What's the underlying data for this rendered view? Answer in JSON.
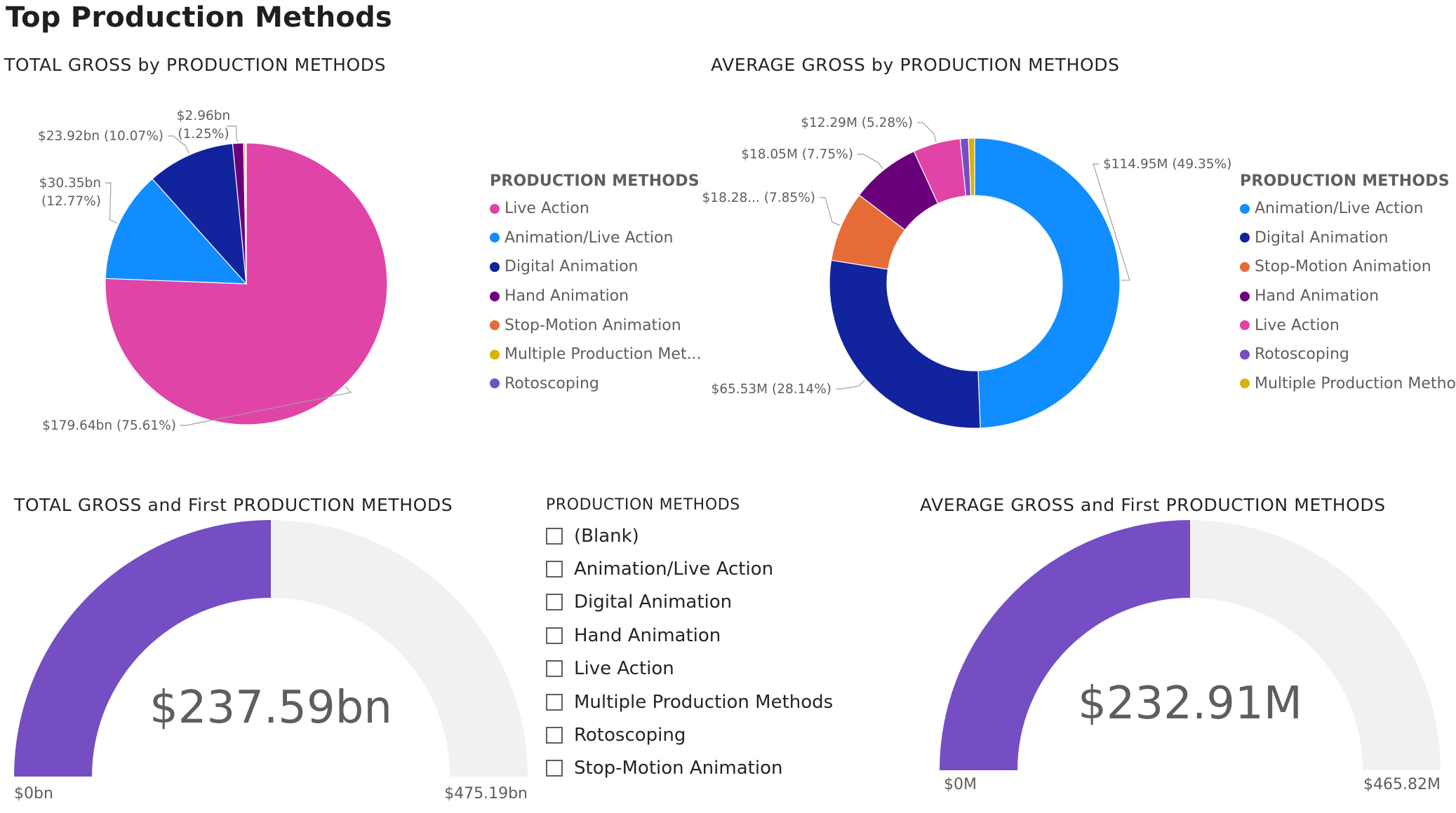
{
  "page": {
    "title": "Top Production Methods"
  },
  "chart_data": [
    {
      "type": "pie",
      "title": "TOTAL GROSS by PRODUCTION METHODS",
      "legend_title": "PRODUCTION METHODS",
      "legend_position": "right",
      "slices": [
        {
          "label": "Live Action",
          "legend_label": "Live Action",
          "value": 179.64,
          "percent": 75.61,
          "display": "$179.64bn (75.61%)",
          "color": "#E044A7"
        },
        {
          "label": "Animation/Live Action",
          "legend_label": "Animation/Live Action",
          "value": 30.35,
          "percent": 12.77,
          "display": "$30.35bn (12.77%)",
          "color": "#118DFF"
        },
        {
          "label": "Digital Animation",
          "legend_label": "Digital Animation",
          "value": 23.92,
          "percent": 10.07,
          "display": "$23.92bn (10.07%)",
          "color": "#12239E"
        },
        {
          "label": "Hand Animation",
          "legend_label": "Hand Animation",
          "value": 2.96,
          "percent": 1.25,
          "display": "$2.96bn (1.25%)",
          "color": "#6B007B"
        },
        {
          "label": "Stop-Motion Animation",
          "legend_label": "Stop-Motion Animation",
          "value": 0.4,
          "percent": 0.17,
          "display": "",
          "color": "#E66C37"
        },
        {
          "label": "Multiple Production Methods",
          "legend_label": "Multiple Production Met...",
          "value": 0.25,
          "percent": 0.1,
          "display": "",
          "color": "#D9B300"
        },
        {
          "label": "Rotoscoping",
          "legend_label": "Rotoscoping",
          "value": 0.07,
          "percent": 0.03,
          "display": "",
          "color": "#744EC2"
        }
      ]
    },
    {
      "type": "pie",
      "variant": "donut",
      "title": "AVERAGE GROSS by PRODUCTION METHODS",
      "legend_title": "PRODUCTION METHODS",
      "legend_position": "right",
      "slices": [
        {
          "label": "Animation/Live Action",
          "legend_label": "Animation/Live Action",
          "value": 114.95,
          "percent": 49.35,
          "display": "$114.95M (49.35%)",
          "color": "#118DFF"
        },
        {
          "label": "Digital Animation",
          "legend_label": "Digital Animation",
          "value": 65.53,
          "percent": 28.14,
          "display": "$65.53M (28.14%)",
          "color": "#12239E"
        },
        {
          "label": "Stop-Motion Animation",
          "legend_label": "Stop-Motion Animation",
          "value": 18.28,
          "percent": 7.85,
          "display": "$18.28... (7.85%)",
          "color": "#E66C37"
        },
        {
          "label": "Hand Animation",
          "legend_label": "Hand Animation",
          "value": 18.05,
          "percent": 7.75,
          "display": "$18.05M (7.75%)",
          "color": "#6B007B"
        },
        {
          "label": "Live Action",
          "legend_label": "Live Action",
          "value": 12.29,
          "percent": 5.28,
          "display": "$12.29M (5.28%)",
          "color": "#E044A7"
        },
        {
          "label": "Rotoscoping",
          "legend_label": "Rotoscoping",
          "value": 2.1,
          "percent": 0.9,
          "display": "",
          "color": "#744EC2"
        },
        {
          "label": "Multiple Production Methods",
          "legend_label": "Multiple Production Methods",
          "value": 1.6,
          "percent": 0.69,
          "display": "",
          "color": "#D9B300"
        }
      ]
    },
    {
      "type": "gauge",
      "title": "TOTAL GROSS and First PRODUCTION METHODS",
      "value": 237.59,
      "min": 0,
      "max": 475.19,
      "value_label": "$237.59bn",
      "min_label": "$0bn",
      "max_label": "$475.19bn",
      "fill_color": "#744EC2",
      "track_color": "#F2F1F1"
    },
    {
      "type": "gauge",
      "title": "AVERAGE GROSS and First PRODUCTION METHODS",
      "value": 232.91,
      "min": 0,
      "max": 465.82,
      "value_label": "$232.91M",
      "min_label": "$0M",
      "max_label": "$465.82M",
      "fill_color": "#744EC2",
      "track_color": "#F2F1F1"
    }
  ],
  "slicer": {
    "title": "PRODUCTION METHODS",
    "items": [
      {
        "label": "(Blank)",
        "checked": false
      },
      {
        "label": "Animation/Live Action",
        "checked": false
      },
      {
        "label": "Digital Animation",
        "checked": false
      },
      {
        "label": "Hand Animation",
        "checked": false
      },
      {
        "label": "Live Action",
        "checked": false
      },
      {
        "label": "Multiple Production Methods",
        "checked": false
      },
      {
        "label": "Rotoscoping",
        "checked": false
      },
      {
        "label": "Stop-Motion Animation",
        "checked": false
      }
    ]
  }
}
